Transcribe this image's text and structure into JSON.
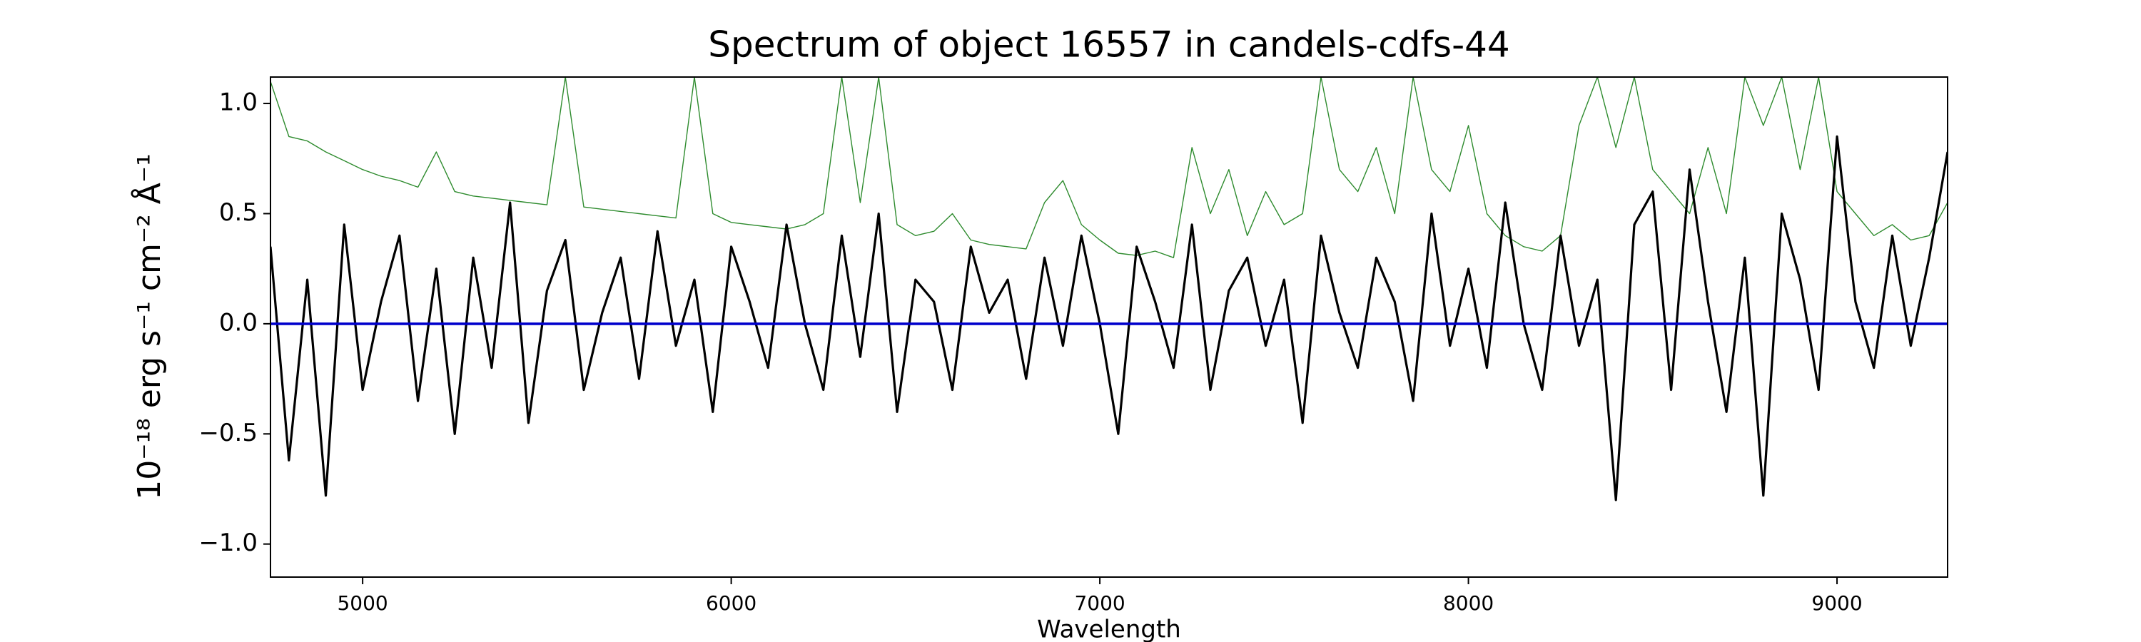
{
  "chart_data": {
    "type": "line",
    "title": "Spectrum of object 16557 in candels-cdfs-44",
    "x_label": "Wavelength",
    "y_label": "10⁻¹⁸ erg s⁻¹ cm⁻² Å⁻¹",
    "x": [
      4750,
      4800,
      4850,
      4900,
      4950,
      5000,
      5050,
      5100,
      5150,
      5200,
      5250,
      5300,
      5350,
      5400,
      5450,
      5500,
      5550,
      5600,
      5650,
      5700,
      5750,
      5800,
      5850,
      5900,
      5950,
      6000,
      6050,
      6100,
      6150,
      6200,
      6250,
      6300,
      6350,
      6400,
      6450,
      6500,
      6550,
      6600,
      6650,
      6700,
      6750,
      6800,
      6850,
      6900,
      6950,
      7000,
      7050,
      7100,
      7150,
      7200,
      7250,
      7300,
      7350,
      7400,
      7450,
      7500,
      7550,
      7600,
      7650,
      7700,
      7750,
      7800,
      7850,
      7900,
      7950,
      8000,
      8050,
      8100,
      8150,
      8200,
      8250,
      8300,
      8350,
      8400,
      8450,
      8500,
      8550,
      8600,
      8650,
      8700,
      8750,
      8800,
      8850,
      8900,
      8950,
      9000,
      9050,
      9100,
      9150,
      9200,
      9250,
      9300
    ],
    "series": [
      {
        "color": "#2e8b2e",
        "values": [
          1.1,
          0.85,
          0.83,
          0.78,
          0.74,
          0.7,
          0.67,
          0.65,
          0.62,
          0.78,
          0.6,
          0.58,
          0.57,
          0.56,
          0.55,
          0.54,
          1.12,
          0.53,
          0.52,
          0.51,
          0.5,
          0.49,
          0.48,
          1.12,
          0.5,
          0.46,
          0.45,
          0.44,
          0.43,
          0.45,
          0.5,
          1.12,
          0.55,
          1.12,
          0.45,
          0.4,
          0.42,
          0.5,
          0.38,
          0.36,
          0.35,
          0.34,
          0.55,
          0.65,
          0.45,
          0.38,
          0.32,
          0.31,
          0.33,
          0.3,
          0.8,
          0.5,
          0.7,
          0.4,
          0.6,
          0.45,
          0.5,
          1.12,
          0.7,
          0.6,
          0.8,
          0.5,
          1.12,
          0.7,
          0.6,
          0.9,
          0.5,
          0.4,
          0.35,
          0.33,
          0.4,
          0.9,
          1.12,
          0.8,
          1.12,
          0.7,
          0.6,
          0.5,
          0.8,
          0.5,
          1.12,
          0.9,
          1.12,
          0.7,
          1.12,
          0.6,
          0.5,
          0.4,
          0.45,
          0.38,
          0.4,
          0.55
        ]
      },
      {
        "color": "#000000",
        "values": [
          0.35,
          -0.62,
          0.2,
          -0.78,
          0.45,
          -0.3,
          0.1,
          0.4,
          -0.35,
          0.25,
          -0.5,
          0.3,
          -0.2,
          0.55,
          -0.45,
          0.15,
          0.38,
          -0.3,
          0.05,
          0.3,
          -0.25,
          0.42,
          -0.1,
          0.2,
          -0.4,
          0.35,
          0.1,
          -0.2,
          0.45,
          0.0,
          -0.3,
          0.4,
          -0.15,
          0.5,
          -0.4,
          0.2,
          0.1,
          -0.3,
          0.35,
          0.05,
          0.2,
          -0.25,
          0.3,
          -0.1,
          0.4,
          0.0,
          -0.5,
          0.35,
          0.1,
          -0.2,
          0.45,
          -0.3,
          0.15,
          0.3,
          -0.1,
          0.2,
          -0.45,
          0.4,
          0.05,
          -0.2,
          0.3,
          0.1,
          -0.35,
          0.5,
          -0.1,
          0.25,
          -0.2,
          0.55,
          0.0,
          -0.3,
          0.4,
          -0.1,
          0.2,
          -0.8,
          0.45,
          0.6,
          -0.3,
          0.7,
          0.1,
          -0.4,
          0.3,
          -0.78,
          0.5,
          0.2,
          -0.3,
          0.85,
          0.1,
          -0.2,
          0.4,
          -0.1,
          0.3,
          0.78
        ]
      },
      {
        "color": "#0000cc",
        "values": [
          0,
          0,
          0,
          0,
          0,
          0,
          0,
          0,
          0,
          0,
          0,
          0,
          0,
          0,
          0,
          0,
          0,
          0,
          0,
          0,
          0,
          0,
          0,
          0,
          0,
          0,
          0,
          0,
          0,
          0,
          0,
          0,
          0,
          0,
          0,
          0,
          0,
          0,
          0,
          0,
          0,
          0,
          0,
          0,
          0,
          0,
          0,
          0,
          0,
          0,
          0,
          0,
          0,
          0,
          0,
          0,
          0,
          0,
          0,
          0,
          0,
          0,
          0,
          0,
          0,
          0,
          0,
          0,
          0,
          0,
          0,
          0,
          0,
          0,
          0,
          0,
          0,
          0,
          0,
          0,
          0,
          0,
          0,
          0,
          0,
          0,
          0,
          0,
          0,
          0,
          0,
          0
        ]
      }
    ],
    "xlim": [
      4750,
      9300
    ],
    "ylim": [
      -1.15,
      1.12
    ],
    "xticks": [
      5000,
      6000,
      7000,
      8000,
      9000
    ],
    "yticks": [
      {
        "value": -1.0,
        "label": "−1.0"
      },
      {
        "value": -0.5,
        "label": "−0.5"
      },
      {
        "value": 0.0,
        "label": "0.0"
      },
      0.5,
      {
        "value": 1.0,
        "label": "1.0"
      }
    ]
  }
}
